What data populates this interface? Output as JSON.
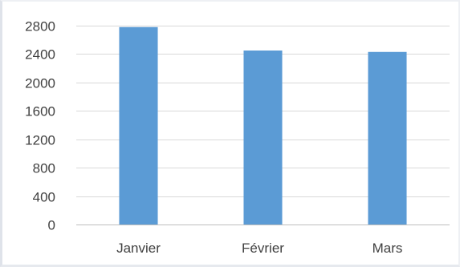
{
  "chart_data": {
    "type": "bar",
    "title": "",
    "xlabel": "",
    "ylabel": "",
    "categories": [
      "Janvier",
      "Février",
      "Mars"
    ],
    "values": [
      2780,
      2450,
      2430
    ],
    "ylim": [
      0,
      2800
    ],
    "yticks": [
      0,
      400,
      800,
      1200,
      1600,
      2000,
      2400,
      2800
    ],
    "grid": true,
    "legend": "none",
    "colors": {
      "bar": "#5b9bd5",
      "grid": "#d9d9d9",
      "axis": "#bfbfbf",
      "text": "#404040"
    }
  }
}
